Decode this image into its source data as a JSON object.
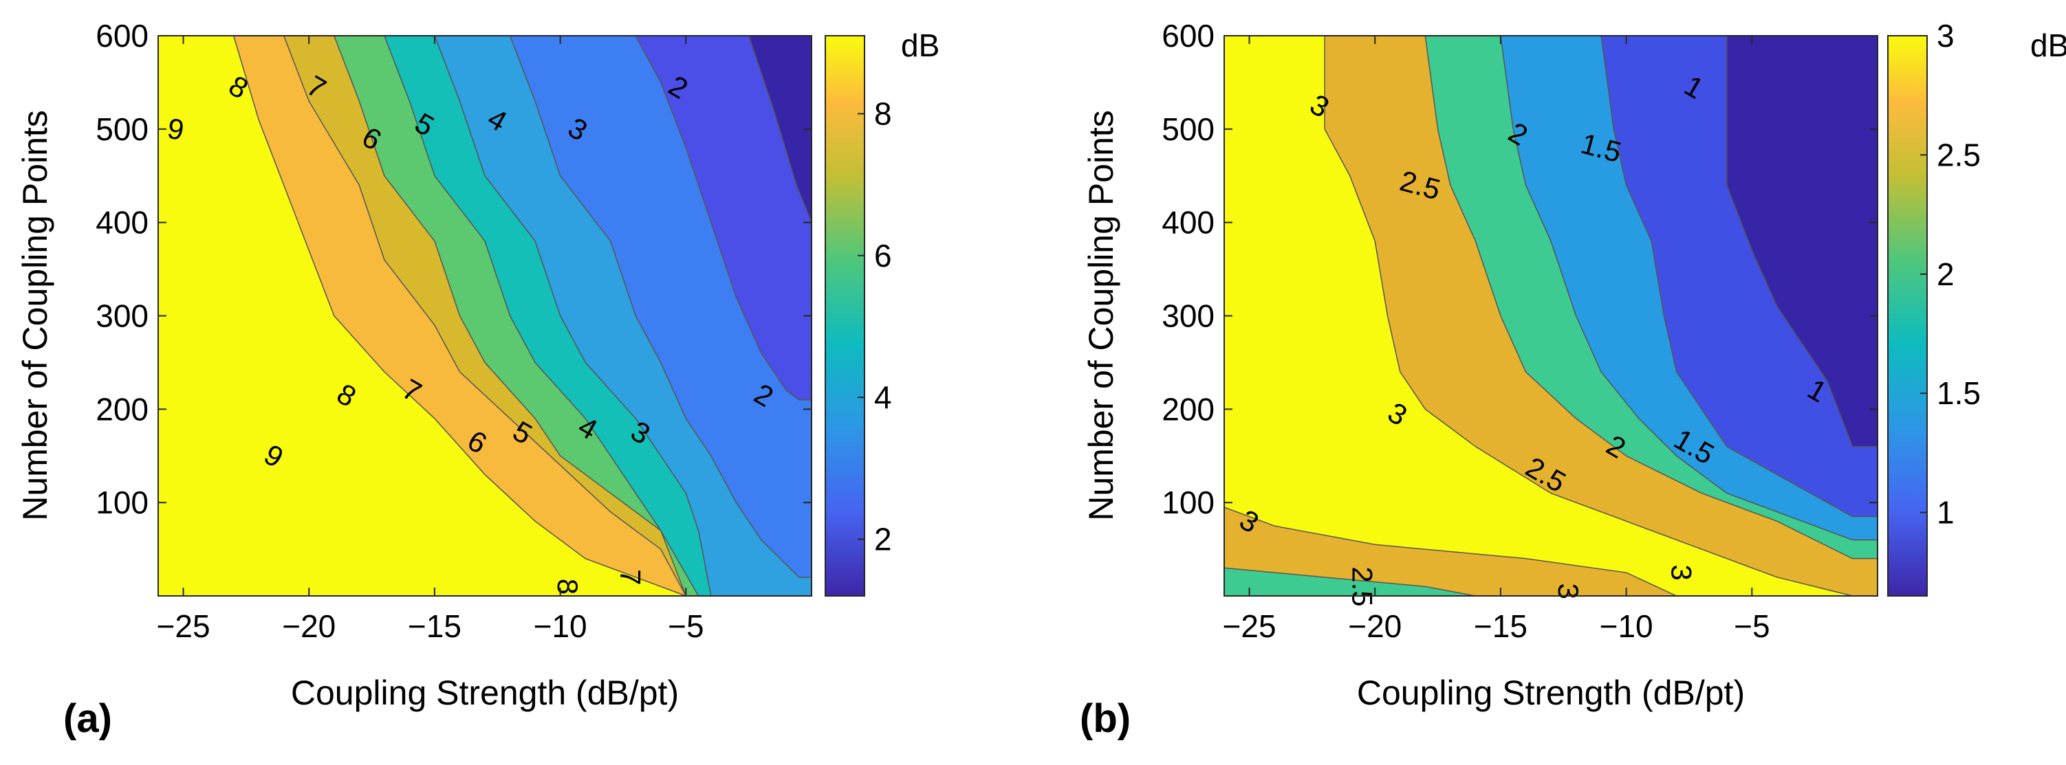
{
  "chart_data": [
    {
      "type": "contour",
      "panel_label": "(a)",
      "xlabel": "Coupling Strength (dB/pt)",
      "ylabel": "Number of Coupling Points",
      "xlim": [
        -26,
        0
      ],
      "ylim": [
        0,
        600
      ],
      "xticks": [
        -25,
        -20,
        -15,
        -10,
        -5
      ],
      "yticks": [
        100,
        200,
        300,
        400,
        500,
        600
      ],
      "colorbar": {
        "label": "dB",
        "range": [
          1.2,
          9.1
        ],
        "ticks": [
          2,
          4,
          6,
          8
        ]
      },
      "levels": [
        {
          "level": 9,
          "color": "#F9FB0E",
          "boundary": [
            [
              -25,
              490
            ],
            [
              -24,
              440
            ],
            [
              -23,
              360
            ],
            [
              -22,
              300
            ],
            [
              -21,
              240
            ],
            [
              -20,
              180
            ],
            [
              -19,
              120
            ],
            [
              -18,
              60
            ],
            [
              -17,
              0
            ]
          ]
        },
        {
          "level": 8,
          "color": "#F8BA3C",
          "boundary": [
            [
              -23,
              600
            ],
            [
              -22,
              510
            ],
            [
              -21,
              440
            ],
            [
              -20,
              370
            ],
            [
              -19,
              300
            ],
            [
              -17,
              240
            ],
            [
              -15,
              190
            ],
            [
              -13,
              130
            ],
            [
              -11,
              80
            ],
            [
              -9,
              40
            ],
            [
              -7,
              20
            ],
            [
              -5,
              0
            ]
          ]
        },
        {
          "level": 7,
          "color": "#D8B92E",
          "boundary": [
            [
              -21,
              600
            ],
            [
              -20,
              530
            ],
            [
              -18,
              440
            ],
            [
              -17,
              360
            ],
            [
              -15,
              290
            ],
            [
              -14,
              240
            ],
            [
              -12,
              190
            ],
            [
              -10,
              140
            ],
            [
              -8,
              90
            ],
            [
              -6,
              50
            ],
            [
              -5,
              0
            ]
          ]
        },
        {
          "level": 6,
          "color": "#5CC86F",
          "boundary": [
            [
              -19,
              600
            ],
            [
              -18,
              530
            ],
            [
              -17,
              450
            ],
            [
              -15,
              380
            ],
            [
              -14,
              300
            ],
            [
              -13,
              250
            ],
            [
              -11,
              190
            ],
            [
              -10,
              150
            ],
            [
              -8,
              110
            ],
            [
              -6,
              70
            ],
            [
              -5,
              0
            ]
          ]
        },
        {
          "level": 5,
          "color": "#13BFB7",
          "boundary": [
            [
              -17,
              600
            ],
            [
              -16,
              530
            ],
            [
              -15,
              450
            ],
            [
              -13,
              380
            ],
            [
              -12,
              300
            ],
            [
              -11,
              250
            ],
            [
              -9,
              190
            ],
            [
              -8,
              150
            ],
            [
              -7,
              110
            ],
            [
              -6,
              70
            ],
            [
              -4.5,
              0
            ]
          ]
        },
        {
          "level": 4,
          "color": "#2FA0E0",
          "boundary": [
            [
              -15,
              600
            ],
            [
              -14,
              530
            ],
            [
              -13,
              450
            ],
            [
              -11,
              380
            ],
            [
              -10,
              300
            ],
            [
              -9,
              250
            ],
            [
              -7,
              190
            ],
            [
              -6,
              150
            ],
            [
              -5,
              110
            ],
            [
              -4.5,
              70
            ],
            [
              -4,
              0
            ]
          ]
        },
        {
          "level": 3,
          "color": "#3D7FF2",
          "boundary": [
            [
              -12,
              600
            ],
            [
              -11,
              530
            ],
            [
              -10,
              450
            ],
            [
              -8,
              380
            ],
            [
              -7,
              300
            ],
            [
              -6,
              250
            ],
            [
              -5,
              190
            ],
            [
              -4,
              150
            ],
            [
              -3,
              100
            ],
            [
              -2,
              60
            ],
            [
              -0.5,
              20
            ]
          ]
        },
        {
          "level": 2,
          "color": "#4B4FE8",
          "boundary": [
            [
              -7,
              600
            ],
            [
              -6,
              550
            ],
            [
              -5,
              480
            ],
            [
              -4,
              400
            ],
            [
              -3,
              320
            ],
            [
              -2,
              260
            ],
            [
              -1,
              220
            ],
            [
              -0.5,
              210
            ]
          ]
        },
        {
          "level": 1,
          "color": "#3725A8",
          "boundary": []
        }
      ],
      "contour_labels": [
        {
          "text": "9",
          "x": -25.3,
          "y": 500,
          "angle": -80
        },
        {
          "text": "8",
          "x": -22.8,
          "y": 545,
          "angle": -60
        },
        {
          "text": "7",
          "x": -19.7,
          "y": 545,
          "angle": -60
        },
        {
          "text": "6",
          "x": -17.5,
          "y": 490,
          "angle": -60
        },
        {
          "text": "5",
          "x": -15.4,
          "y": 505,
          "angle": -60
        },
        {
          "text": "4",
          "x": -12.5,
          "y": 510,
          "angle": -60
        },
        {
          "text": "3",
          "x": -9.3,
          "y": 500,
          "angle": -60
        },
        {
          "text": "2",
          "x": -5.3,
          "y": 545,
          "angle": -60
        },
        {
          "text": "9",
          "x": -21.4,
          "y": 150,
          "angle": -60
        },
        {
          "text": "8",
          "x": -18.5,
          "y": 215,
          "angle": -60
        },
        {
          "text": "7",
          "x": -15.9,
          "y": 220,
          "angle": -60
        },
        {
          "text": "6",
          "x": -13.3,
          "y": 165,
          "angle": -60
        },
        {
          "text": "5",
          "x": -11.5,
          "y": 175,
          "angle": -60
        },
        {
          "text": "4",
          "x": -8.9,
          "y": 180,
          "angle": -60
        },
        {
          "text": "3",
          "x": -6.8,
          "y": 175,
          "angle": -60
        },
        {
          "text": "2",
          "x": -1.9,
          "y": 215,
          "angle": -60
        },
        {
          "text": "8",
          "x": -9.7,
          "y": 10,
          "angle": 0
        },
        {
          "text": "7",
          "x": -7.2,
          "y": 20,
          "angle": 0
        }
      ]
    },
    {
      "type": "contour",
      "panel_label": "(b)",
      "xlabel": "Coupling Strength (dB/pt)",
      "ylabel": "Number of Coupling Points",
      "xlim": [
        -26,
        0
      ],
      "ylim": [
        0,
        600
      ],
      "xticks": [
        -25,
        -20,
        -15,
        -10,
        -5
      ],
      "yticks": [
        100,
        200,
        300,
        400,
        500,
        600
      ],
      "colorbar": {
        "label": "dB",
        "range": [
          0.65,
          3.0
        ],
        "ticks": [
          1,
          1.5,
          2,
          2.5,
          3
        ]
      },
      "levels": [
        {
          "level": 3,
          "color": "#F9FB0E",
          "boundary": []
        },
        {
          "level": 2.5,
          "color": "#E4B22F",
          "boundary": [
            [
              -22,
              600
            ],
            [
              -22,
              500
            ],
            [
              -21,
              450
            ],
            [
              -20,
              380
            ],
            [
              -19.5,
              300
            ],
            [
              -19,
              240
            ],
            [
              -18,
              200
            ],
            [
              -16,
              160
            ],
            [
              -13,
              110
            ],
            [
              -10,
              80
            ],
            [
              -7,
              50
            ],
            [
              -4,
              20
            ],
            [
              -1,
              0
            ]
          ]
        },
        {
          "level": 2,
          "color": "#3ECB91",
          "boundary": [
            [
              -18,
              600
            ],
            [
              -17.5,
              500
            ],
            [
              -17,
              440
            ],
            [
              -16,
              380
            ],
            [
              -15,
              300
            ],
            [
              -14,
              240
            ],
            [
              -12,
              190
            ],
            [
              -10,
              150
            ],
            [
              -7,
              110
            ],
            [
              -4,
              80
            ],
            [
              -1,
              40
            ]
          ]
        },
        {
          "level": 1.5,
          "color": "#279CE2",
          "boundary": [
            [
              -15,
              600
            ],
            [
              -14.5,
              500
            ],
            [
              -14,
              440
            ],
            [
              -13,
              380
            ],
            [
              -12,
              300
            ],
            [
              -11,
              240
            ],
            [
              -9.5,
              190
            ],
            [
              -8,
              150
            ],
            [
              -6,
              110
            ],
            [
              -3,
              80
            ],
            [
              -1,
              60
            ]
          ]
        },
        {
          "level": 1,
          "color": "#4150E4",
          "boundary": [
            [
              -11,
              600
            ],
            [
              -10.5,
              500
            ],
            [
              -10,
              440
            ],
            [
              -9,
              380
            ],
            [
              -8.5,
              300
            ],
            [
              -8,
              240
            ],
            [
              -7,
              200
            ],
            [
              -6,
              160
            ],
            [
              -4,
              130
            ],
            [
              -2,
              100
            ],
            [
              -1,
              85
            ]
          ]
        },
        {
          "level": 0.7,
          "color": "#3725A8",
          "boundary": [
            [
              -6,
              600
            ],
            [
              -6,
              500
            ],
            [
              -6,
              440
            ],
            [
              -5,
              370
            ],
            [
              -4,
              310
            ],
            [
              -3,
              270
            ],
            [
              -2,
              230
            ],
            [
              -1,
              160
            ]
          ]
        }
      ],
      "bottom_band": {
        "level_low": 2.5,
        "level_mid": 2.0
      },
      "contour_labels": [
        {
          "text": "3",
          "x": -22.2,
          "y": 525,
          "angle": -60
        },
        {
          "text": "2.5",
          "x": -18.2,
          "y": 440,
          "angle": -75
        },
        {
          "text": "2",
          "x": -14.3,
          "y": 495,
          "angle": -60
        },
        {
          "text": "1.5",
          "x": -11.0,
          "y": 480,
          "angle": -75
        },
        {
          "text": "1",
          "x": -7.3,
          "y": 545,
          "angle": -60
        },
        {
          "text": "3",
          "x": -19.1,
          "y": 195,
          "angle": -60
        },
        {
          "text": "2.5",
          "x": -13.2,
          "y": 130,
          "angle": -60
        },
        {
          "text": "2",
          "x": -10.4,
          "y": 160,
          "angle": -60
        },
        {
          "text": "1.5",
          "x": -7.3,
          "y": 160,
          "angle": -60
        },
        {
          "text": "1",
          "x": -2.4,
          "y": 220,
          "angle": -60
        },
        {
          "text": "3",
          "x": -25.0,
          "y": 80,
          "angle": -60
        },
        {
          "text": "2.5",
          "x": -20.5,
          "y": 10,
          "angle": 0
        },
        {
          "text": "3",
          "x": -12.3,
          "y": 5,
          "angle": 0
        },
        {
          "text": "3",
          "x": -7.8,
          "y": 25,
          "angle": 0
        }
      ]
    }
  ]
}
